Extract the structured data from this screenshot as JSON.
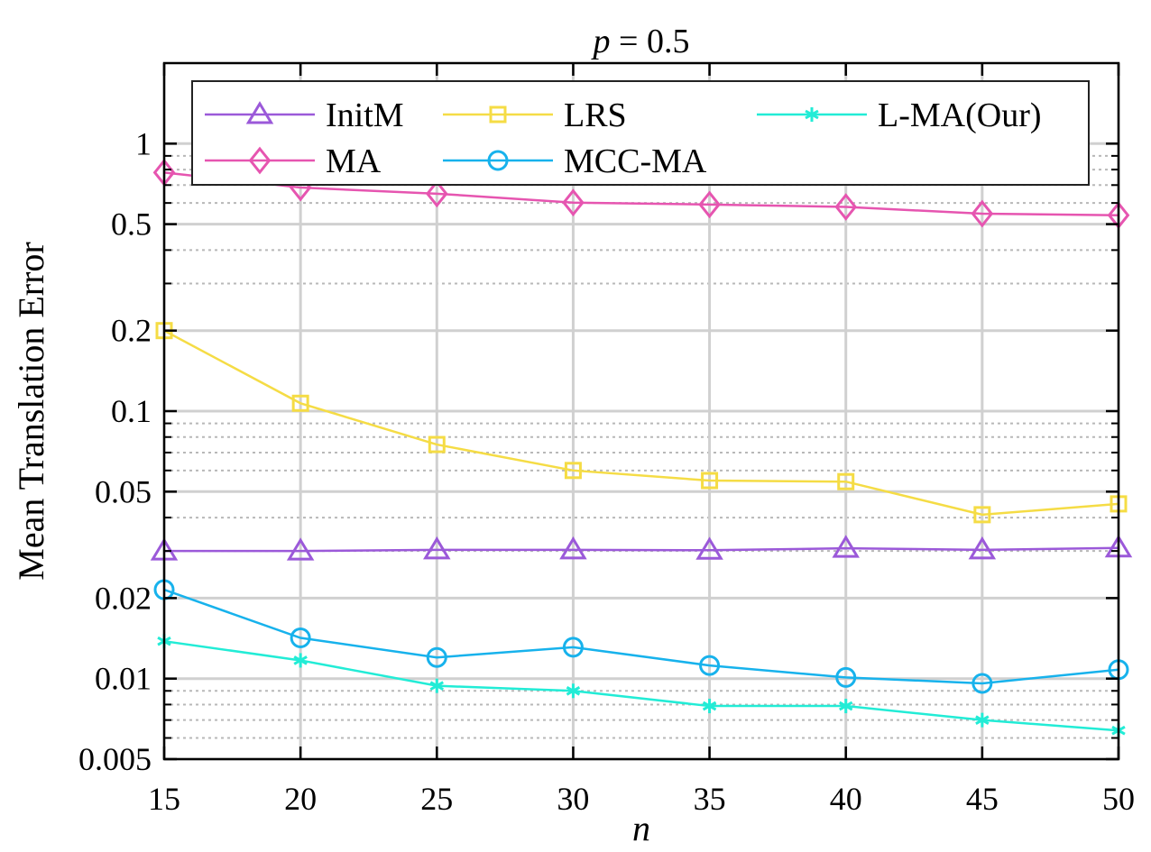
{
  "chart_data": {
    "type": "line",
    "title_var": "p",
    "title_rest": " = 0.5",
    "xlabel": "n",
    "ylabel": "Mean Translation Error",
    "x": [
      15,
      20,
      25,
      30,
      35,
      40,
      45,
      50
    ],
    "xlim": [
      15,
      50
    ],
    "ylim": [
      0.005,
      2
    ],
    "yscale": "log",
    "xticks": [
      15,
      20,
      25,
      30,
      35,
      40,
      45,
      50
    ],
    "xtick_labels": [
      "15",
      "20",
      "25",
      "30",
      "35",
      "40",
      "45",
      "50"
    ],
    "yticks": [
      0.005,
      0.01,
      0.02,
      0.05,
      0.1,
      0.2,
      0.5,
      1
    ],
    "ytick_labels": [
      "0.005",
      "0.01",
      "0.02",
      "0.05",
      "0.1",
      "0.2",
      "0.5",
      "1"
    ],
    "grid": true,
    "legend_position": "top",
    "series": [
      {
        "name": "InitM",
        "color": "#9b59d9",
        "marker": "triangle",
        "values": [
          0.03,
          0.03,
          0.0303,
          0.0303,
          0.0302,
          0.0307,
          0.0303,
          0.0308
        ]
      },
      {
        "name": "MA",
        "color": "#e655b0",
        "marker": "diamond",
        "values": [
          0.78,
          0.685,
          0.65,
          0.602,
          0.592,
          0.58,
          0.547,
          0.54
        ]
      },
      {
        "name": "LRS",
        "color": "#f5dc45",
        "marker": "square",
        "values": [
          0.2,
          0.107,
          0.075,
          0.06,
          0.055,
          0.0545,
          0.041,
          0.045
        ]
      },
      {
        "name": "MCC-MA",
        "color": "#17b2ec",
        "marker": "circle",
        "values": [
          0.0215,
          0.0142,
          0.012,
          0.0131,
          0.0112,
          0.0101,
          0.0096,
          0.0108
        ]
      },
      {
        "name": "L-MA(Our)",
        "color": "#22ecd6",
        "marker": "asterisk",
        "values": [
          0.0138,
          0.0117,
          0.0094,
          0.009,
          0.0079,
          0.0079,
          0.007,
          0.0064
        ]
      }
    ]
  }
}
